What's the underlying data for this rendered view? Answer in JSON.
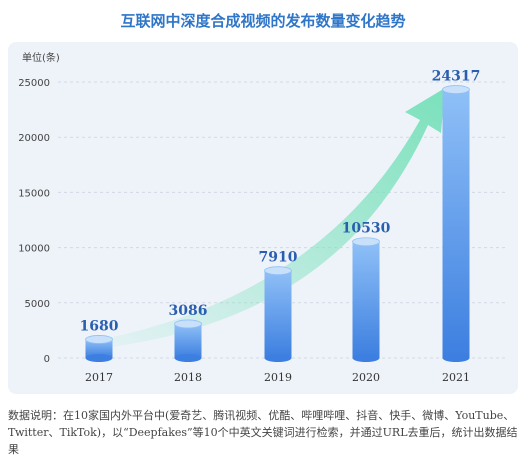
{
  "title": "互联网中深度合成视频的发布数量变化趋势",
  "unit_label": "单位(条)",
  "note": "数据说明：在10家国内外平台中(爱奇艺、腾讯视频、优酷、哔哩哔哩、抖音、快手、微博、YouTube、Twitter、TikTok)，以“Deepfakes”等10个中英文关键词进行检索，并通过URL去重后，统计出数据结果",
  "colors": {
    "bar_top": "#8fc0f7",
    "bar_bottom": "#3d7fe0",
    "arrow": "#74e0b8",
    "value_label": "#2a5fb0",
    "title": "#2f76c9"
  },
  "chart_data": {
    "type": "bar",
    "categories": [
      "2017",
      "2018",
      "2019",
      "2020",
      "2021"
    ],
    "values": [
      1680,
      3086,
      7910,
      10530,
      24317
    ],
    "ylim": [
      0,
      25000
    ],
    "yticks": [
      0,
      5000,
      10000,
      15000,
      20000,
      25000
    ],
    "ylabel": "单位(条)",
    "grid": true,
    "annotation": "trend arrow rising from 2017 to 2021"
  }
}
